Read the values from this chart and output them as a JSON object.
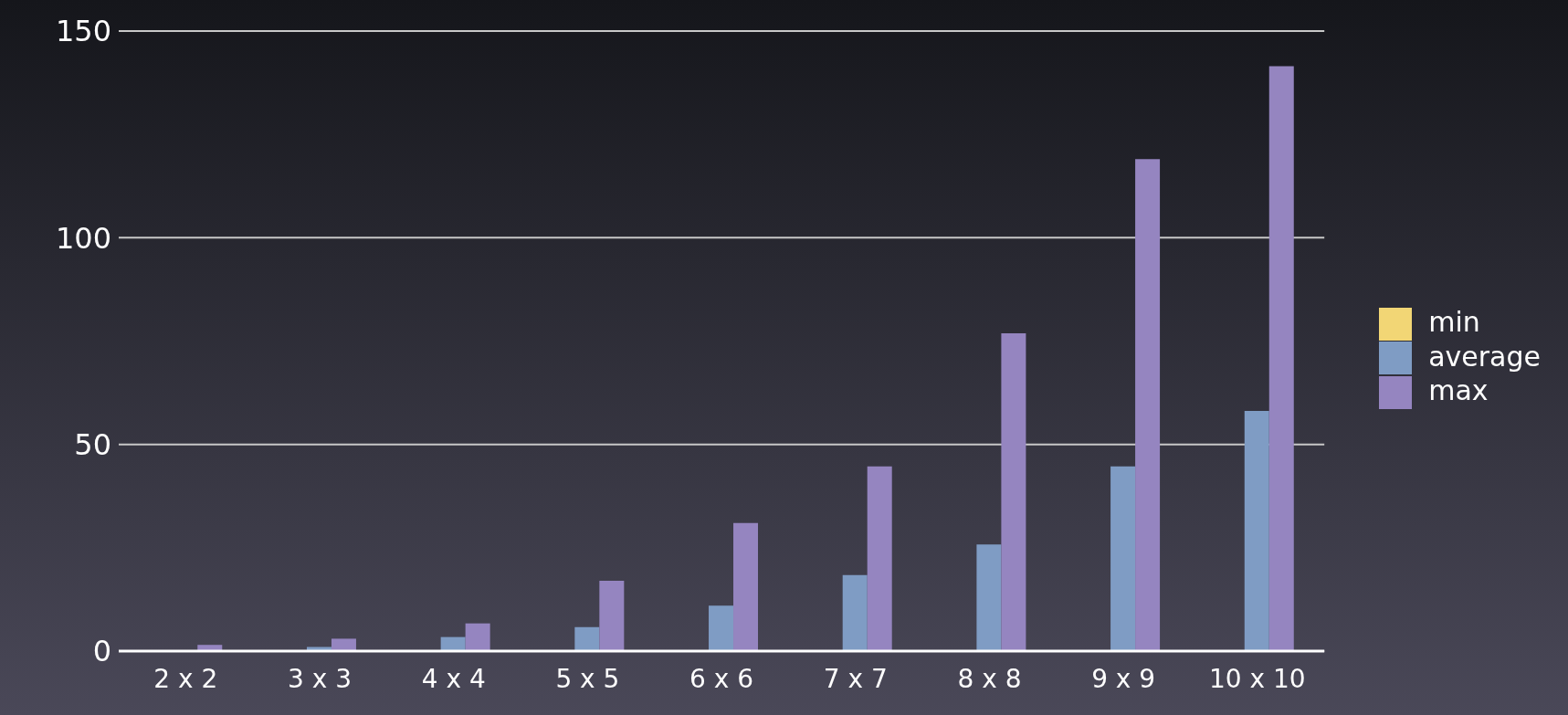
{
  "chart_data": {
    "type": "bar",
    "categories": [
      "2 x 2",
      "3 x 3",
      "4 x 4",
      "5 x 5",
      "6 x 6",
      "7 x 7",
      "8 x 8",
      "9 x 9",
      "10 x 10"
    ],
    "series": [
      {
        "name": "min",
        "color": "#f2d675",
        "values": [
          0,
          0,
          0,
          0,
          0,
          0,
          0,
          0,
          0
        ]
      },
      {
        "name": "average",
        "color": "#7f9cc4",
        "values": [
          0.2,
          1,
          3.4,
          5.8,
          11,
          18.4,
          25.8,
          44.7,
          58.1
        ]
      },
      {
        "name": "max",
        "color": "#9585c0",
        "values": [
          1.5,
          3,
          6.7,
          17,
          31,
          44.7,
          76.9,
          119,
          141.5
        ]
      }
    ],
    "ylim": [
      0,
      150
    ],
    "yticks": [
      0,
      50,
      100,
      150
    ],
    "grid": "y",
    "legend": "right"
  }
}
